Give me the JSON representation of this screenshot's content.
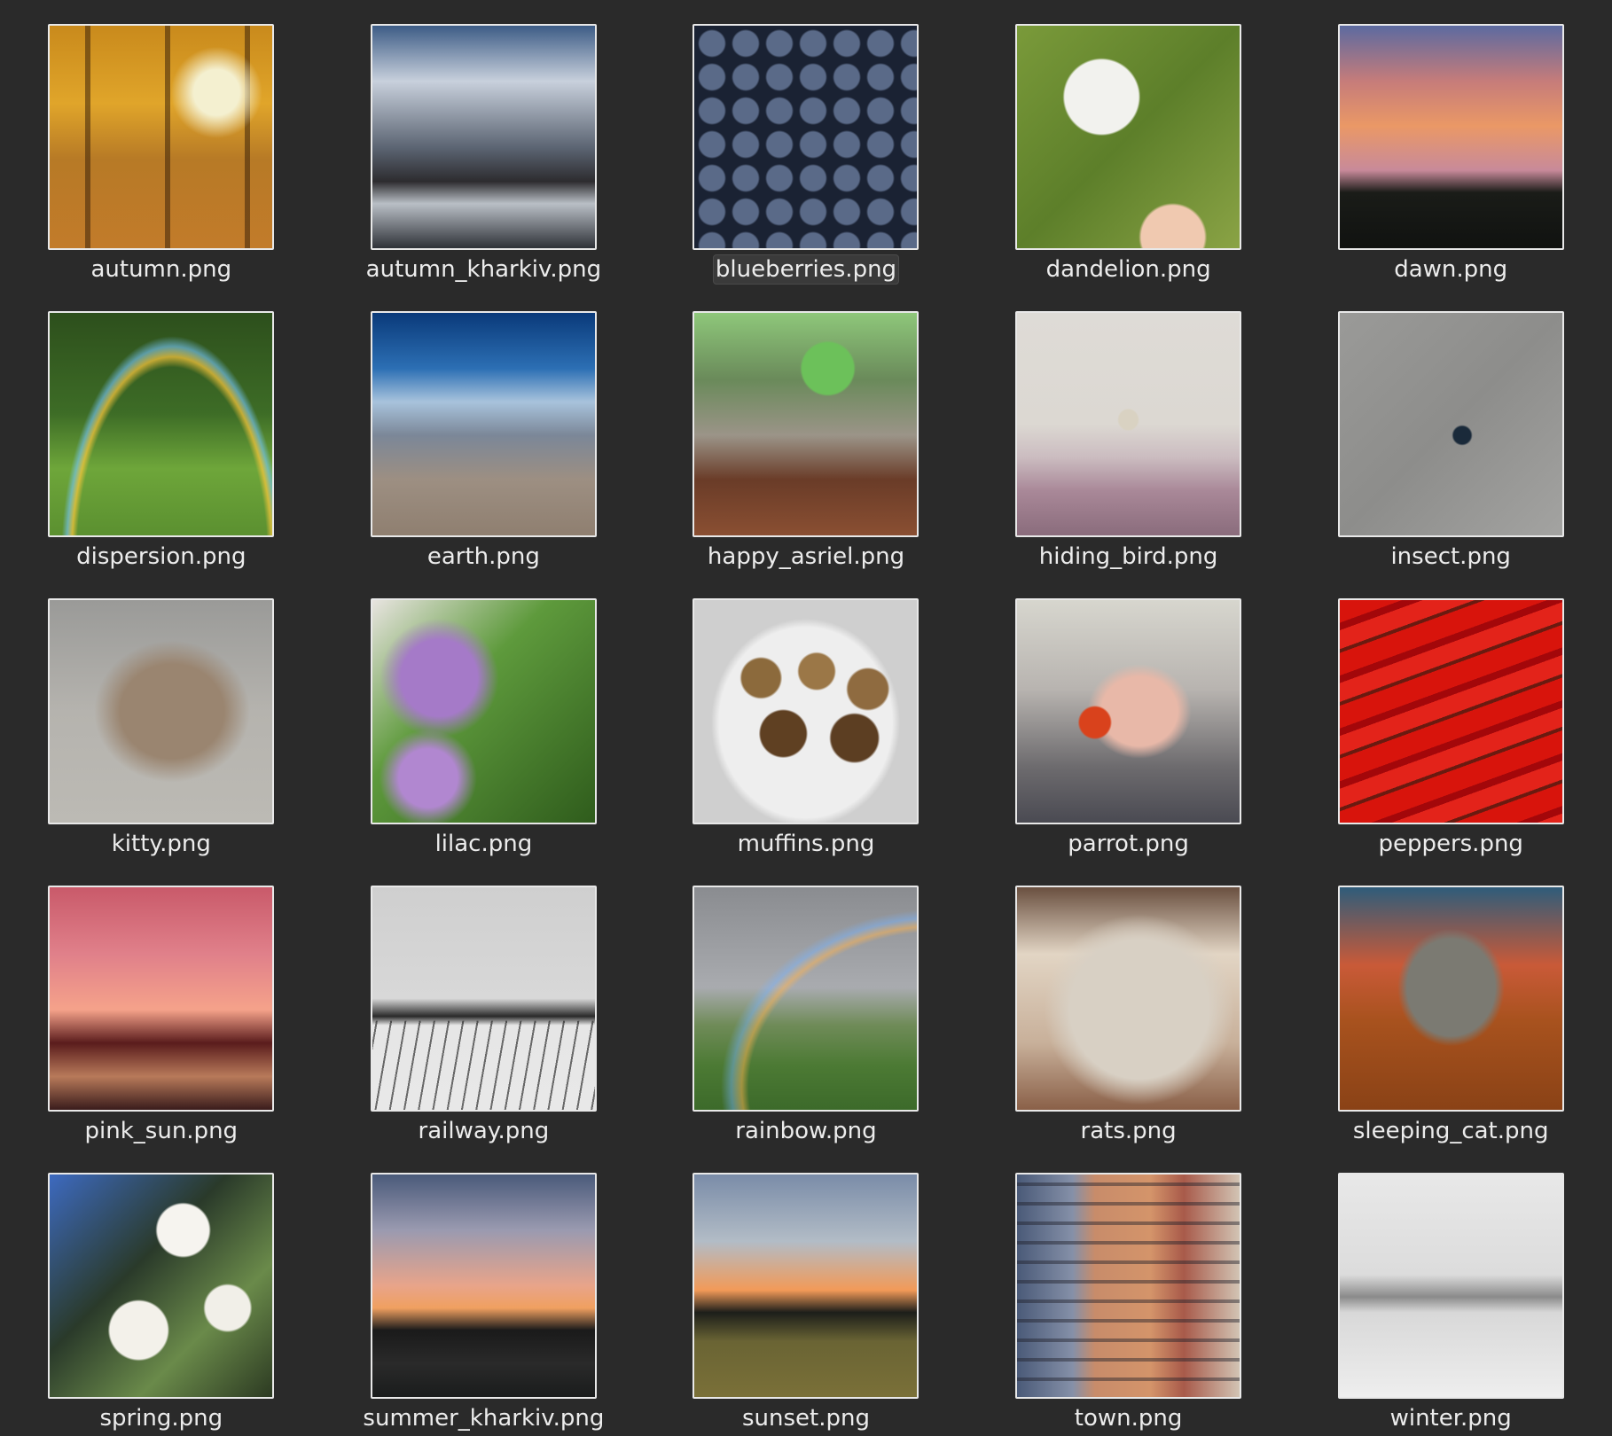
{
  "files": [
    {
      "name": "autumn.png",
      "thumb": "autumn",
      "selected": false
    },
    {
      "name": "autumn_kharkiv.png",
      "thumb": "autumn-kharkiv",
      "selected": false
    },
    {
      "name": "blueberries.png",
      "thumb": "blueberries",
      "selected": true
    },
    {
      "name": "dandelion.png",
      "thumb": "dandelion",
      "selected": false
    },
    {
      "name": "dawn.png",
      "thumb": "dawn",
      "selected": false
    },
    {
      "name": "dispersion.png",
      "thumb": "dispersion",
      "selected": false
    },
    {
      "name": "earth.png",
      "thumb": "earth",
      "selected": false
    },
    {
      "name": "happy_asriel.png",
      "thumb": "happy-asriel",
      "selected": false
    },
    {
      "name": "hiding_bird.png",
      "thumb": "hiding-bird",
      "selected": false
    },
    {
      "name": "insect.png",
      "thumb": "insect",
      "selected": false
    },
    {
      "name": "kitty.png",
      "thumb": "kitty",
      "selected": false
    },
    {
      "name": "lilac.png",
      "thumb": "lilac",
      "selected": false
    },
    {
      "name": "muffins.png",
      "thumb": "muffins",
      "selected": false
    },
    {
      "name": "parrot.png",
      "thumb": "parrot",
      "selected": false
    },
    {
      "name": "peppers.png",
      "thumb": "peppers",
      "selected": false
    },
    {
      "name": "pink_sun.png",
      "thumb": "pink-sun",
      "selected": false
    },
    {
      "name": "railway.png",
      "thumb": "railway",
      "selected": false
    },
    {
      "name": "rainbow.png",
      "thumb": "rainbow",
      "selected": false
    },
    {
      "name": "rats.png",
      "thumb": "rats",
      "selected": false
    },
    {
      "name": "sleeping_cat.png",
      "thumb": "sleeping-cat",
      "selected": false
    },
    {
      "name": "spring.png",
      "thumb": "spring",
      "selected": false
    },
    {
      "name": "summer_kharkiv.png",
      "thumb": "summer-kharkiv",
      "selected": false
    },
    {
      "name": "sunset.png",
      "thumb": "sunset",
      "selected": false
    },
    {
      "name": "town.png",
      "thumb": "town",
      "selected": false
    },
    {
      "name": "winter.png",
      "thumb": "winter",
      "selected": false
    }
  ],
  "colors": {
    "background": "#2a2a2a",
    "label_text": "#ececec",
    "thumb_border": "#e8e8e8"
  }
}
